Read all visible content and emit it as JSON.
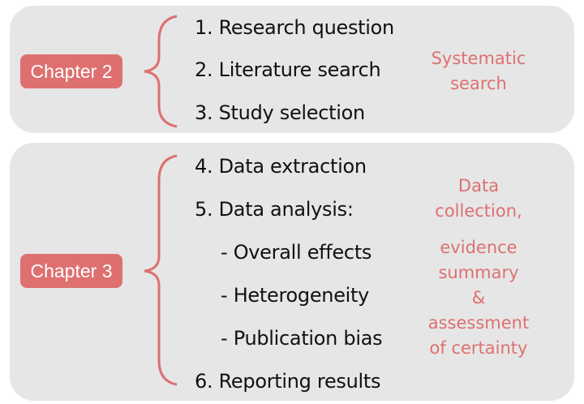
{
  "chapter2": {
    "label": "Chapter 2",
    "steps": [
      "1. Research question",
      "2. Literature search",
      "3. Study selection"
    ],
    "note": [
      "Systematic",
      "search"
    ]
  },
  "chapter3": {
    "label": "Chapter 3",
    "steps": [
      "4. Data extraction",
      "5. Data analysis:",
      "- Overall effects",
      "- Heterogeneity",
      "-  Publication bias",
      "6. Reporting results"
    ],
    "note": [
      "Data",
      "collection,",
      "evidence",
      "summary",
      "&",
      "assessment",
      "of certainty"
    ]
  },
  "colors": {
    "accent": "#de7070",
    "panel": "#e6e6e6",
    "text": "#111111"
  }
}
